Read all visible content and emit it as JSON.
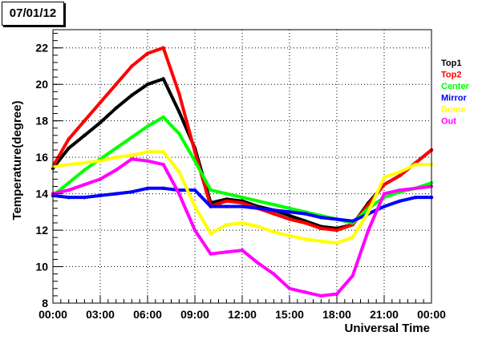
{
  "title": "07/01/12",
  "chart_data": {
    "type": "scatter",
    "title": "07/01/12",
    "xlabel": "Universal Time",
    "ylabel": "Temperature(degree)",
    "xlim": [
      0,
      24
    ],
    "ylim": [
      8,
      23
    ],
    "grid": true,
    "legend_position": "right",
    "x_ticks": [
      "00:00",
      "03:00",
      "06:00",
      "09:00",
      "12:00",
      "15:00",
      "18:00",
      "21:00",
      "00:00"
    ],
    "x_tick_hours": [
      0,
      3,
      6,
      9,
      12,
      15,
      18,
      21,
      24
    ],
    "y_ticks": [
      8,
      10,
      12,
      14,
      16,
      18,
      20,
      22
    ],
    "x": [
      0,
      1,
      2,
      3,
      4,
      5,
      6,
      7,
      8,
      9,
      10,
      11,
      12,
      13,
      14,
      15,
      16,
      17,
      18,
      19,
      20,
      21,
      22,
      23,
      24
    ],
    "series": [
      {
        "name": "Top1",
        "color": "#000000",
        "values": [
          15.4,
          16.5,
          17.2,
          17.9,
          18.7,
          19.4,
          20.0,
          20.3,
          18.5,
          16.5,
          13.5,
          13.7,
          13.6,
          13.3,
          13.1,
          12.8,
          12.5,
          12.2,
          12.1,
          12.3,
          13.5,
          14.5,
          15.0,
          15.7,
          16.4
        ]
      },
      {
        "name": "Top2",
        "color": "#ff0000",
        "values": [
          15.5,
          17.0,
          18.0,
          19.0,
          20.0,
          21.0,
          21.7,
          22.0,
          19.5,
          16.3,
          13.3,
          13.6,
          13.5,
          13.2,
          12.9,
          12.6,
          12.4,
          12.1,
          12.0,
          12.3,
          13.4,
          14.5,
          15.0,
          15.7,
          16.4
        ]
      },
      {
        "name": "Center",
        "color": "#00ff00",
        "values": [
          13.9,
          14.6,
          15.3,
          15.9,
          16.5,
          17.1,
          17.7,
          18.2,
          17.3,
          15.8,
          14.2,
          14.0,
          13.8,
          13.6,
          13.4,
          13.2,
          13.0,
          12.8,
          12.6,
          12.4,
          13.2,
          13.8,
          14.1,
          14.3,
          14.6
        ]
      },
      {
        "name": "Mirror",
        "color": "#0000ff",
        "values": [
          13.9,
          13.8,
          13.8,
          13.9,
          14.0,
          14.1,
          14.3,
          14.3,
          14.2,
          14.2,
          13.3,
          13.3,
          13.3,
          13.2,
          13.1,
          13.0,
          12.9,
          12.7,
          12.6,
          12.5,
          12.9,
          13.3,
          13.6,
          13.8,
          13.8
        ]
      },
      {
        "name": "Dome",
        "color": "#ffff00",
        "values": [
          15.5,
          15.6,
          15.7,
          15.8,
          16.0,
          16.1,
          16.3,
          16.3,
          15.2,
          13.3,
          11.8,
          12.3,
          12.4,
          12.2,
          11.9,
          11.7,
          11.5,
          11.4,
          11.3,
          11.6,
          13.0,
          14.9,
          15.2,
          15.6,
          15.6
        ]
      },
      {
        "name": "Out",
        "color": "#ff00ff",
        "values": [
          14.0,
          14.2,
          14.5,
          14.8,
          15.3,
          15.9,
          15.8,
          15.6,
          14.0,
          12.0,
          10.7,
          10.8,
          10.9,
          10.2,
          9.6,
          8.8,
          8.6,
          8.4,
          8.5,
          9.5,
          12.0,
          14.0,
          14.2,
          14.3,
          14.4
        ]
      }
    ]
  }
}
